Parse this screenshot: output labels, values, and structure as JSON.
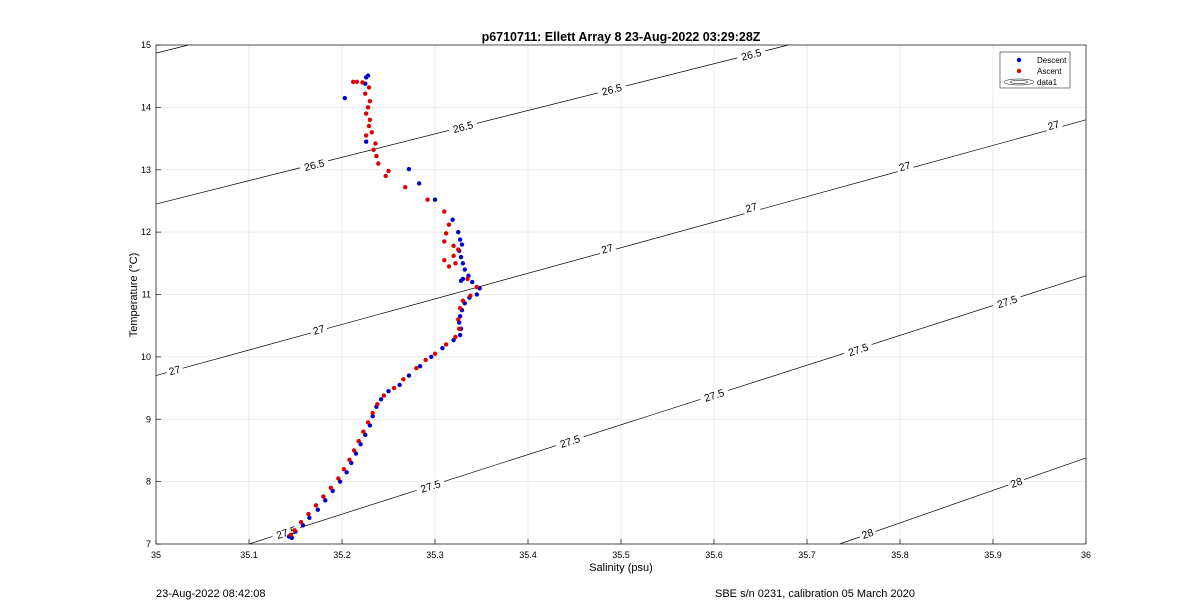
{
  "chart_data": {
    "type": "scatter",
    "title": "p6710711: Ellett Array 8 23-Aug-2022 03:29:28Z",
    "xlabel": "Salinity (psu)",
    "ylabel": "Temperature (°C)",
    "xlim": [
      35,
      36
    ],
    "ylim": [
      7,
      15
    ],
    "xticks": [
      "35",
      "35.1",
      "35.2",
      "35.3",
      "35.4",
      "35.5",
      "35.6",
      "35.7",
      "35.8",
      "35.9",
      "36"
    ],
    "yticks": [
      "7",
      "8",
      "9",
      "10",
      "11",
      "12",
      "13",
      "14",
      "15"
    ],
    "grid": true,
    "legend_position": "top-right",
    "legend": [
      "Descent",
      "Ascent",
      "data1"
    ],
    "series": [
      {
        "name": "Descent",
        "color": "#0000cc",
        "points": [
          [
            35.228,
            14.51
          ],
          [
            35.226,
            14.48
          ],
          [
            35.225,
            14.38
          ],
          [
            35.203,
            14.15
          ],
          [
            35.226,
            13.45
          ],
          [
            35.272,
            13.01
          ],
          [
            35.283,
            12.78
          ],
          [
            35.3,
            12.52
          ],
          [
            35.319,
            12.2
          ],
          [
            35.325,
            12.0
          ],
          [
            35.327,
            11.88
          ],
          [
            35.329,
            11.8
          ],
          [
            35.326,
            11.7
          ],
          [
            35.328,
            11.6
          ],
          [
            35.33,
            11.5
          ],
          [
            35.332,
            11.4
          ],
          [
            35.336,
            11.3
          ],
          [
            35.33,
            11.25
          ],
          [
            35.328,
            11.22
          ],
          [
            35.34,
            11.2
          ],
          [
            35.348,
            11.1
          ],
          [
            35.345,
            11.0
          ],
          [
            35.337,
            10.95
          ],
          [
            35.332,
            10.86
          ],
          [
            35.329,
            10.75
          ],
          [
            35.327,
            10.65
          ],
          [
            35.326,
            10.55
          ],
          [
            35.328,
            10.45
          ],
          [
            35.327,
            10.35
          ],
          [
            35.32,
            10.27
          ],
          [
            35.308,
            10.14
          ],
          [
            35.296,
            10.0
          ],
          [
            35.284,
            9.85
          ],
          [
            35.272,
            9.7
          ],
          [
            35.262,
            9.55
          ],
          [
            35.25,
            9.45
          ],
          [
            35.242,
            9.32
          ],
          [
            35.237,
            9.2
          ],
          [
            35.233,
            9.05
          ],
          [
            35.23,
            8.9
          ],
          [
            35.225,
            8.75
          ],
          [
            35.22,
            8.6
          ],
          [
            35.215,
            8.45
          ],
          [
            35.21,
            8.3
          ],
          [
            35.205,
            8.15
          ],
          [
            35.198,
            8.0
          ],
          [
            35.19,
            7.85
          ],
          [
            35.182,
            7.7
          ],
          [
            35.174,
            7.55
          ],
          [
            35.165,
            7.42
          ],
          [
            35.158,
            7.3
          ],
          [
            35.15,
            7.2
          ],
          [
            35.143,
            7.12
          ],
          [
            35.146,
            7.1
          ]
        ]
      },
      {
        "name": "Ascent",
        "color": "#dd0000",
        "points": [
          [
            35.212,
            14.41
          ],
          [
            35.216,
            14.41
          ],
          [
            35.222,
            14.4
          ],
          [
            35.229,
            14.32
          ],
          [
            35.225,
            14.22
          ],
          [
            35.23,
            14.1
          ],
          [
            35.228,
            14.0
          ],
          [
            35.226,
            13.9
          ],
          [
            35.23,
            13.8
          ],
          [
            35.229,
            13.7
          ],
          [
            35.232,
            13.6
          ],
          [
            35.226,
            13.55
          ],
          [
            35.236,
            13.42
          ],
          [
            35.234,
            13.32
          ],
          [
            35.237,
            13.22
          ],
          [
            35.239,
            13.1
          ],
          [
            35.25,
            12.98
          ],
          [
            35.247,
            12.9
          ],
          [
            35.268,
            12.72
          ],
          [
            35.292,
            12.52
          ],
          [
            35.31,
            12.33
          ],
          [
            35.315,
            12.12
          ],
          [
            35.312,
            11.98
          ],
          [
            35.31,
            11.85
          ],
          [
            35.32,
            11.78
          ],
          [
            35.325,
            11.72
          ],
          [
            35.32,
            11.62
          ],
          [
            35.31,
            11.55
          ],
          [
            35.322,
            11.5
          ],
          [
            35.315,
            11.45
          ],
          [
            35.335,
            11.25
          ],
          [
            35.345,
            11.12
          ],
          [
            35.338,
            10.98
          ],
          [
            35.33,
            10.9
          ],
          [
            35.327,
            10.78
          ],
          [
            35.325,
            10.6
          ],
          [
            35.326,
            10.45
          ],
          [
            35.322,
            10.32
          ],
          [
            35.312,
            10.2
          ],
          [
            35.3,
            10.05
          ],
          [
            35.29,
            9.95
          ],
          [
            35.28,
            9.82
          ],
          [
            35.266,
            9.64
          ],
          [
            35.256,
            9.5
          ],
          [
            35.245,
            9.38
          ],
          [
            35.238,
            9.24
          ],
          [
            35.233,
            9.1
          ],
          [
            35.228,
            8.95
          ],
          [
            35.223,
            8.8
          ],
          [
            35.218,
            8.65
          ],
          [
            35.213,
            8.5
          ],
          [
            35.208,
            8.35
          ],
          [
            35.202,
            8.2
          ],
          [
            35.196,
            8.05
          ],
          [
            35.188,
            7.9
          ],
          [
            35.18,
            7.76
          ],
          [
            35.172,
            7.62
          ],
          [
            35.164,
            7.48
          ],
          [
            35.156,
            7.35
          ],
          [
            35.149,
            7.22
          ],
          [
            35.145,
            7.15
          ]
        ]
      }
    ],
    "contours": [
      {
        "level": "26.5",
        "line": [
          [
            35.0,
            14.87
          ],
          [
            35.035,
            15.0
          ]
        ],
        "labels": []
      },
      {
        "level": "26.5",
        "line": [
          [
            35.0,
            12.45
          ],
          [
            35.68,
            15.0
          ]
        ],
        "labels": [
          [
            35.17,
            13.08
          ],
          [
            35.33,
            13.69
          ],
          [
            35.49,
            14.29
          ],
          [
            35.64,
            14.85
          ]
        ]
      },
      {
        "level": "27",
        "line": [
          [
            35.0,
            9.7
          ],
          [
            36.0,
            13.8
          ]
        ],
        "labels": [
          [
            35.02,
            9.79
          ],
          [
            35.175,
            10.44
          ],
          [
            35.485,
            11.74
          ],
          [
            35.64,
            12.4
          ],
          [
            35.805,
            13.06
          ],
          [
            35.965,
            13.72
          ]
        ]
      },
      {
        "level": "27.5",
        "line": [
          [
            35.1,
            7.0
          ],
          [
            36.0,
            11.3
          ]
        ],
        "labels": [
          [
            35.14,
            7.19
          ],
          [
            35.295,
            7.93
          ],
          [
            35.445,
            8.65
          ],
          [
            35.6,
            9.39
          ],
          [
            35.755,
            10.12
          ],
          [
            35.915,
            10.89
          ]
        ]
      },
      {
        "level": "28",
        "line": [
          [
            35.735,
            7.0
          ],
          [
            36.0,
            8.38
          ]
        ],
        "labels": [
          [
            35.765,
            7.17
          ],
          [
            35.925,
            7.99
          ]
        ]
      }
    ]
  },
  "footer": {
    "left": "23-Aug-2022 08:42:08",
    "right": "SBE s/n 0231, calibration 05 March 2020"
  }
}
